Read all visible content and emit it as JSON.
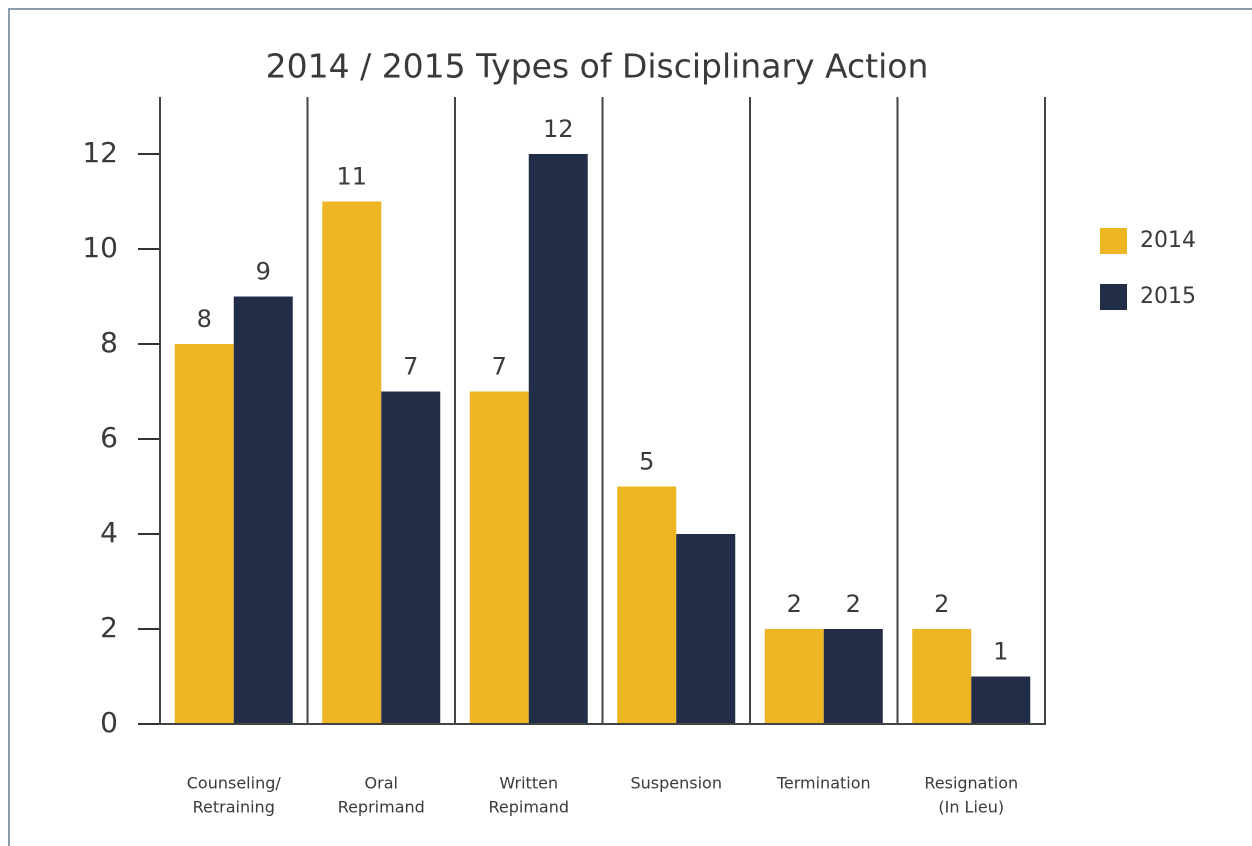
{
  "chart_data": {
    "type": "bar",
    "title": "2014 / 2015 Types of Disciplinary Action",
    "categories": [
      [
        "Counseling/",
        "Retraining"
      ],
      [
        "Oral",
        "Reprimand"
      ],
      [
        "Written",
        "Repimand"
      ],
      [
        "Suspension"
      ],
      [
        "Termination"
      ],
      [
        "Resignation",
        "(In Lieu)"
      ]
    ],
    "series": [
      {
        "name": "2014",
        "color": "#eeb623",
        "values": [
          8,
          11,
          7,
          5,
          2,
          2
        ],
        "value_labels": [
          "8",
          "11",
          "7",
          "5",
          "2",
          "2"
        ]
      },
      {
        "name": "2015",
        "color": "#222d47",
        "values": [
          9,
          7,
          12,
          4,
          2,
          1
        ],
        "value_labels": [
          "9",
          "7",
          "12",
          null,
          "2",
          "1"
        ]
      }
    ],
    "ylim": [
      0,
      13.2
    ],
    "yticks": [
      0,
      2,
      4,
      6,
      8,
      10,
      12
    ],
    "legend": "right"
  }
}
